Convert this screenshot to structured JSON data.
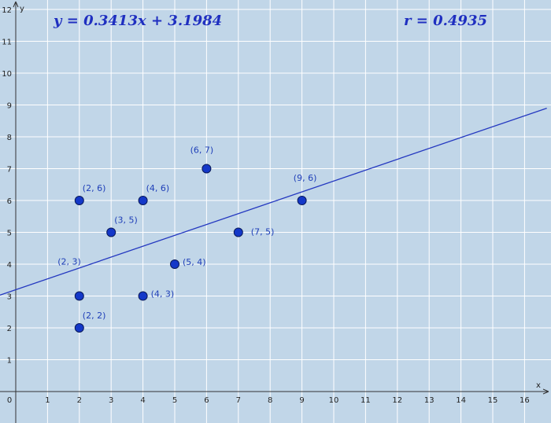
{
  "chart_data": {
    "type": "scatter",
    "title": "",
    "xlabel": "x",
    "ylabel": "y",
    "xlim": [
      0,
      16.7
    ],
    "ylim": [
      0,
      12.2
    ],
    "x_ticks": [
      "0",
      "1",
      "2",
      "3",
      "4",
      "5",
      "6",
      "7",
      "8",
      "9",
      "10",
      "11",
      "12",
      "13",
      "14",
      "15",
      "16"
    ],
    "y_ticks": [
      "1",
      "2",
      "3",
      "4",
      "5",
      "6",
      "7",
      "8",
      "9",
      "10",
      "11",
      "12"
    ],
    "grid": true,
    "points": [
      {
        "x": 2,
        "y": 6,
        "label": "(2, 6)"
      },
      {
        "x": 2,
        "y": 3,
        "label": "(2, 3)"
      },
      {
        "x": 2,
        "y": 2,
        "label": "(2, 2)"
      },
      {
        "x": 3,
        "y": 5,
        "label": "(3, 5)"
      },
      {
        "x": 4,
        "y": 6,
        "label": "(4, 6)"
      },
      {
        "x": 4,
        "y": 3,
        "label": "(4, 3)"
      },
      {
        "x": 5,
        "y": 4,
        "label": "(5, 4)"
      },
      {
        "x": 6,
        "y": 7,
        "label": "(6, 7)"
      },
      {
        "x": 7,
        "y": 5,
        "label": "(7, 5)"
      },
      {
        "x": 9,
        "y": 6,
        "label": "(9, 6)"
      }
    ],
    "regression": {
      "slope": 0.3413,
      "intercept": 3.1984,
      "equation": "y = 0.3413x + 3.1984",
      "correlation": "r = 0.4935"
    },
    "colors": {
      "background": "#c1d6e8",
      "grid": "#ffffff",
      "points": "#1438c8",
      "line": "#2438c0",
      "text": "#1f2fc0"
    }
  }
}
